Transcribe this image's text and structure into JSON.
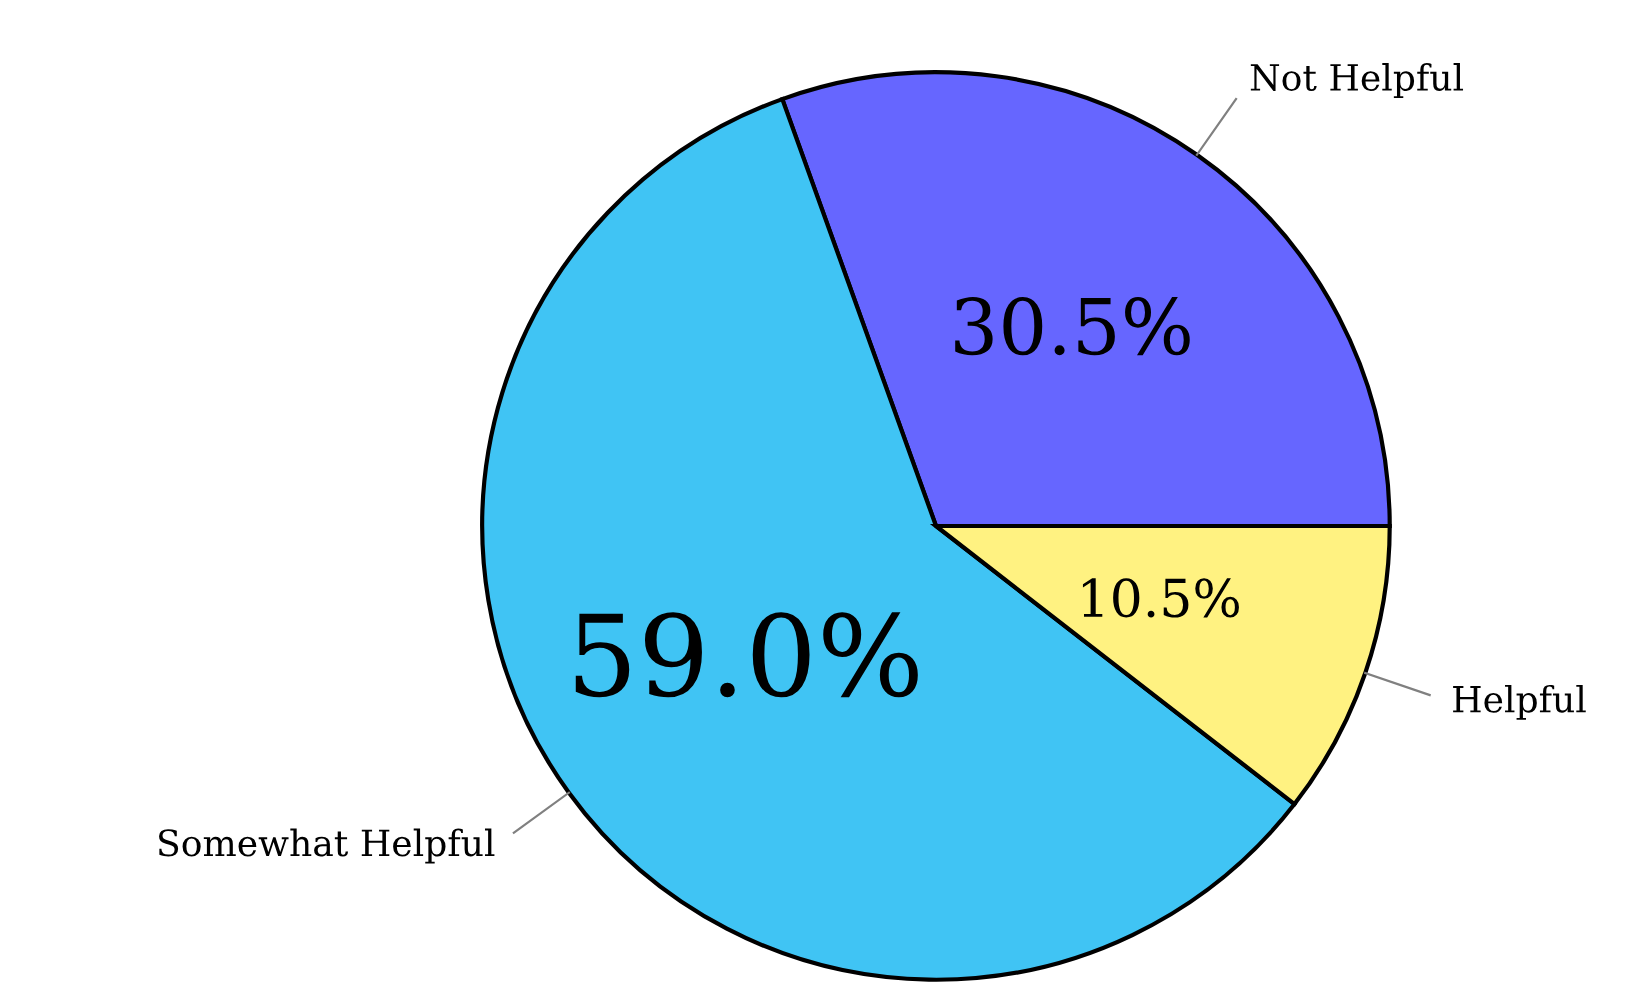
{
  "chart_data": {
    "type": "pie",
    "categories": [
      "Not Helpful",
      "Somewhat Helpful",
      "Helpful"
    ],
    "values": [
      30.5,
      59.0,
      10.5
    ],
    "value_labels": [
      "30.5%",
      "59.0%",
      "10.5%"
    ],
    "colors": [
      "#6666ff",
      "#40c4f4",
      "#fff281"
    ]
  }
}
